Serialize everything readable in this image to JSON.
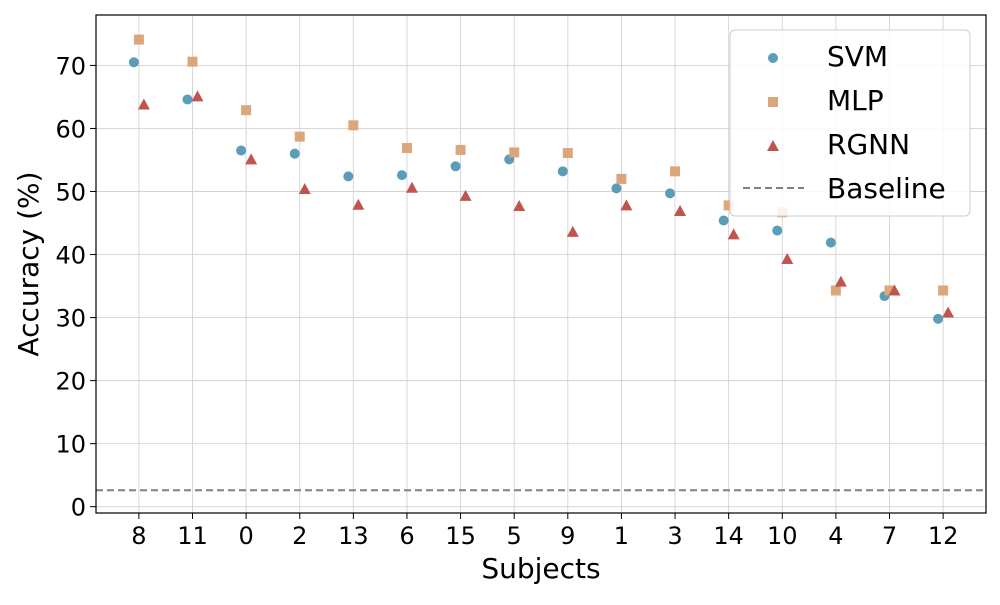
{
  "chart_data": {
    "type": "scatter",
    "title": "",
    "xlabel": "Subjects",
    "ylabel": "Accuracy (%)",
    "ylim": [
      -1,
      78
    ],
    "yticks": [
      0,
      10,
      20,
      30,
      40,
      50,
      60,
      70
    ],
    "categories": [
      "8",
      "11",
      "0",
      "2",
      "13",
      "6",
      "15",
      "5",
      "9",
      "1",
      "3",
      "14",
      "10",
      "4",
      "7",
      "12"
    ],
    "series": [
      {
        "name": "SVM",
        "marker": "circle",
        "color": "#5b9cb8",
        "values": [
          70.5,
          64.6,
          56.5,
          56.0,
          52.4,
          52.6,
          54.0,
          55.1,
          53.2,
          50.5,
          49.7,
          45.4,
          43.8,
          41.9,
          33.4,
          29.8
        ]
      },
      {
        "name": "MLP",
        "marker": "square",
        "color": "#dba67a",
        "values": [
          74.1,
          70.6,
          62.9,
          58.7,
          60.5,
          56.9,
          56.6,
          56.2,
          56.1,
          52.0,
          53.2,
          47.8,
          46.7,
          34.3,
          34.3,
          34.3
        ]
      },
      {
        "name": "RGNN",
        "marker": "triangle",
        "color": "#c05550",
        "values": [
          63.8,
          65.1,
          55.1,
          50.4,
          47.9,
          50.6,
          49.3,
          47.7,
          43.6,
          47.8,
          46.9,
          43.2,
          39.3,
          35.7,
          34.3,
          30.8
        ]
      }
    ],
    "baseline": {
      "name": "Baseline",
      "value": 2.6,
      "color": "#808080",
      "style": "dashed"
    },
    "grid": true,
    "legend_position": "top-right"
  }
}
